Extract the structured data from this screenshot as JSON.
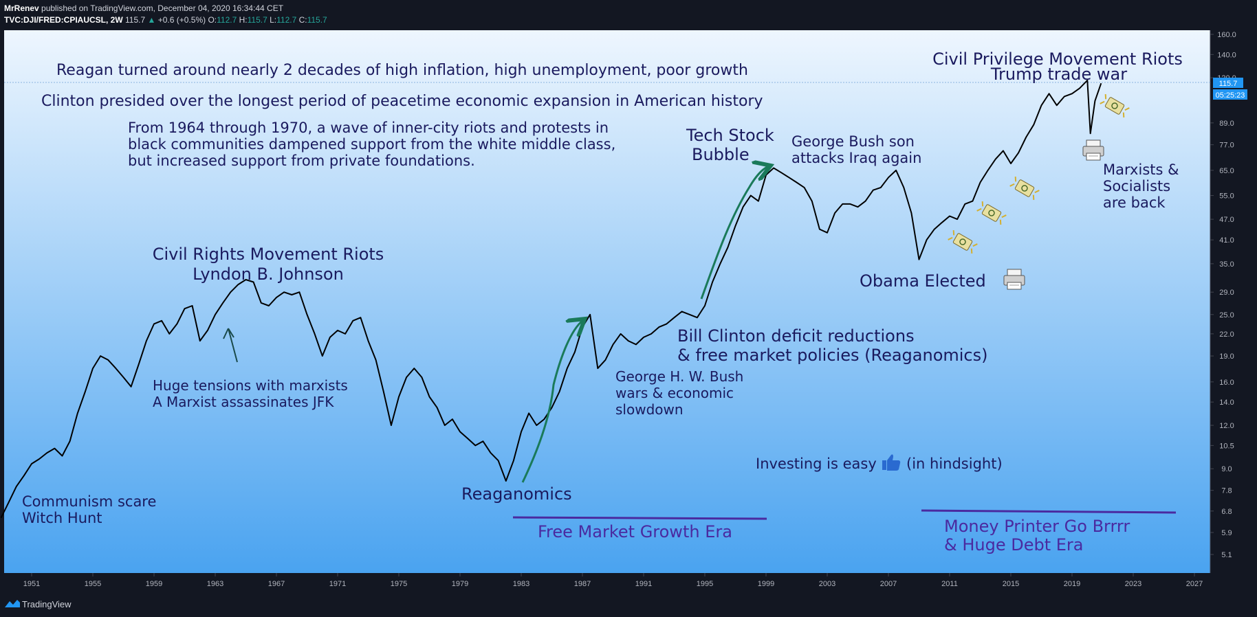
{
  "header": {
    "author": "MrRenev",
    "published_text": "published on TradingView.com, December 04, 2020 16:34:44 CET",
    "symbol": "TVC:DJI/FRED:CPIAUCSL, 2W",
    "last": "115.7",
    "change": "+0.6 (+0.5%)",
    "o_label": "O:",
    "o_value": "112.7",
    "h_label": "H:",
    "h_value": "115.7",
    "l_label": "L:",
    "l_value": "112.7",
    "c_label": "C:",
    "c_value": "115.7"
  },
  "price_tag": "115.7",
  "countdown_tag": "05:25:23",
  "footer": {
    "brand": "TradingView"
  },
  "colors": {
    "bg_top": "#eef6fe",
    "bg_bottom": "#4aa3f0",
    "line": "#000000",
    "arrow": "#1a7a5a",
    "era": "#4a2aa0",
    "text": "#1a1a5e",
    "tag": "#2196f3"
  },
  "annotations": {
    "reagan": "Reagan turned around nearly 2 decades of high inflation, high unemployment, poor growth",
    "clinton": "Clinton presided over the longest period of peacetime economic expansion in American history",
    "riots1": "From 1964 through 1970, a wave of inner-city riots and protests in",
    "riots2": "black communities dampened support from the white middle class,",
    "riots3": "but increased support from private foundations.",
    "civil_rights1": "Civil Rights Movement Riots",
    "civil_rights2": "Lyndon B. Johnson",
    "tensions1": "Huge tensions with marxists",
    "tensions2": "A Marxist assassinates JFK",
    "communism1": "Communism scare",
    "communism2": "Witch Hunt",
    "reaganomics": "Reaganomics",
    "free_market": "Free Market Growth Era",
    "bush1": "George H. W. Bush",
    "bush2": "wars & economic",
    "bush3": " slowdown",
    "clinton_def1": "Bill Clinton deficit reductions",
    "clinton_def2": "& free market policies (Reaganomics)",
    "tech1": "Tech Stock",
    "tech2": "Bubble",
    "bush_son1": "George Bush son",
    "bush_son2": "attacks Iraq again",
    "obama": "Obama Elected",
    "investing_a": "Investing is easy",
    "investing_b": "(in hindsight)",
    "civil_priv": "Civil Privilege Movement Riots",
    "trump": "Trump trade war",
    "marxists1": "Marxists &",
    "marxists2": "Socialists",
    "marxists3": "are back",
    "money1": "Money Printer Go Brrrr",
    "money2": "& Huge Debt Era"
  },
  "icons": {
    "printer": "printer-icon",
    "money": "money-icon",
    "thumbs_up": "thumbs-up-icon"
  },
  "chart_data": {
    "type": "line",
    "title": "TVC:DJI/FRED:CPIAUCSL, 2W",
    "xlabel": "",
    "ylabel": "",
    "y_scale": "log",
    "xlim": [
      1949,
      2028
    ],
    "ylim": [
      4.5,
      165
    ],
    "grid": false,
    "x_ticks": [
      "1951",
      "1955",
      "1959",
      "1963",
      "1967",
      "1971",
      "1975",
      "1979",
      "1983",
      "1987",
      "1991",
      "1995",
      "1999",
      "2003",
      "2007",
      "2011",
      "2015",
      "2019",
      "2023",
      "2027"
    ],
    "y_ticks": [
      "5.1",
      "5.9",
      "6.8",
      "7.8",
      "9.0",
      "10.5",
      "12.0",
      "14.0",
      "16.0",
      "19.0",
      "22.0",
      "25.0",
      "29.0",
      "35.0",
      "41.0",
      "47.0",
      "55.0",
      "65.0",
      "77.0",
      "89.0",
      "120.0",
      "140.0",
      "160.0"
    ],
    "series": [
      {
        "x": [
          1949.0,
          1949.5,
          1950.0,
          1950.5,
          1951.0,
          1951.5,
          1952.0,
          1952.5,
          1953.0,
          1953.5,
          1954.0,
          1954.5,
          1955.0,
          1955.5,
          1956.0,
          1956.5,
          1957.0,
          1957.5,
          1958.0,
          1958.5,
          1959.0,
          1959.5,
          1960.0,
          1960.5,
          1961.0,
          1961.5,
          1962.0,
          1962.5,
          1963.0,
          1963.5,
          1964.0,
          1964.5,
          1965.0,
          1965.5,
          1966.0,
          1966.5,
          1967.0,
          1967.5,
          1968.0,
          1968.5,
          1969.0,
          1969.5,
          1970.0,
          1970.5,
          1971.0,
          1971.5,
          1972.0,
          1972.5,
          1973.0,
          1973.5,
          1974.0,
          1974.5,
          1975.0,
          1975.5,
          1976.0,
          1976.5,
          1977.0,
          1977.5,
          1978.0,
          1978.5,
          1979.0,
          1979.5,
          1980.0,
          1980.5,
          1981.0,
          1981.5,
          1982.0,
          1982.5,
          1983.0,
          1983.5,
          1984.0,
          1984.5,
          1985.0,
          1985.5,
          1986.0,
          1986.5,
          1987.0,
          1987.5,
          1988.0,
          1988.5,
          1989.0,
          1989.5,
          1990.0,
          1990.5,
          1991.0,
          1991.5,
          1992.0,
          1992.5,
          1993.0,
          1993.5,
          1994.0,
          1994.5,
          1995.0,
          1995.5,
          1996.0,
          1996.5,
          1997.0,
          1997.5,
          1998.0,
          1998.5,
          1999.0,
          1999.5,
          2000.0,
          2000.5,
          2001.0,
          2001.5,
          2002.0,
          2002.5,
          2003.0,
          2003.5,
          2004.0,
          2004.5,
          2005.0,
          2005.5,
          2006.0,
          2006.5,
          2007.0,
          2007.5,
          2008.0,
          2008.5,
          2009.0,
          2009.5,
          2010.0,
          2010.5,
          2011.0,
          2011.5,
          2012.0,
          2012.5,
          2013.0,
          2013.5,
          2014.0,
          2014.5,
          2015.0,
          2015.5,
          2016.0,
          2016.5,
          2017.0,
          2017.5,
          2018.0,
          2018.5,
          2019.0,
          2019.5,
          2020.0,
          2020.2,
          2020.5,
          2020.9
        ],
        "values": [
          6.5,
          7.2,
          8.0,
          8.6,
          9.3,
          9.6,
          10.0,
          10.3,
          9.8,
          10.8,
          13.0,
          15.0,
          17.5,
          19.0,
          18.5,
          17.5,
          16.5,
          15.5,
          18.0,
          21.0,
          23.5,
          24.0,
          22.0,
          23.5,
          26.0,
          26.5,
          21.0,
          22.5,
          25.0,
          27.0,
          29.0,
          30.5,
          31.5,
          31.0,
          27.0,
          26.5,
          28.0,
          29.0,
          28.5,
          29.0,
          25.0,
          22.0,
          19.0,
          21.5,
          22.5,
          22.0,
          24.0,
          24.5,
          21.0,
          18.5,
          15.0,
          12.0,
          14.5,
          16.5,
          17.5,
          16.5,
          14.5,
          13.5,
          12.0,
          12.5,
          11.5,
          11.0,
          10.5,
          10.8,
          10.0,
          9.5,
          8.3,
          9.5,
          11.5,
          13.0,
          12.0,
          12.5,
          13.5,
          15.0,
          17.5,
          19.5,
          23.0,
          25.0,
          17.5,
          18.5,
          20.5,
          22.0,
          21.0,
          20.5,
          21.5,
          22.0,
          23.0,
          23.5,
          24.5,
          25.5,
          25.0,
          24.5,
          26.5,
          31.0,
          35.0,
          39.0,
          45.0,
          51.0,
          55.0,
          53.0,
          63.0,
          66.0,
          64.0,
          62.0,
          60.0,
          58.0,
          53.0,
          44.0,
          43.0,
          49.0,
          52.0,
          52.0,
          51.0,
          53.0,
          57.0,
          58.0,
          62.0,
          65.0,
          58.0,
          49.0,
          36.0,
          41.0,
          44.0,
          46.0,
          48.0,
          47.0,
          52.0,
          53.0,
          60.0,
          65.0,
          70.0,
          74.0,
          68.0,
          73.0,
          81.0,
          88.0,
          100.0,
          108.0,
          100.0,
          106.0,
          108.0,
          112.0,
          118.0,
          83.0,
          103.0,
          115.7
        ]
      }
    ]
  }
}
